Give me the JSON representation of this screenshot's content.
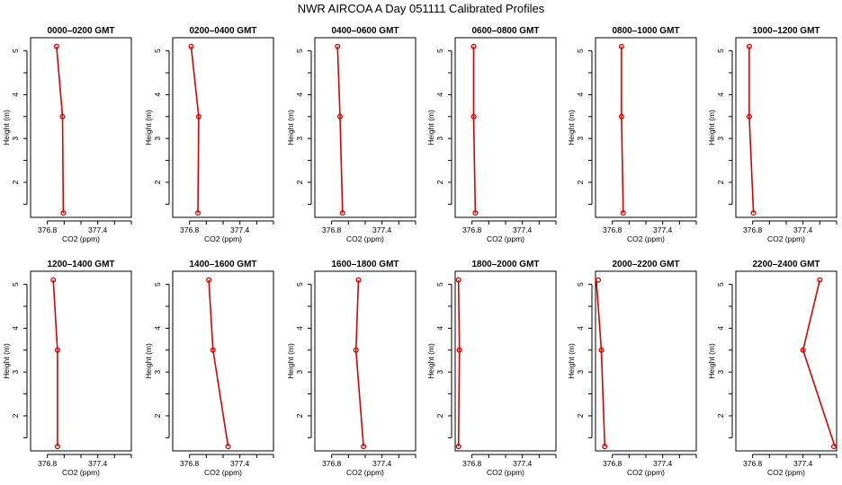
{
  "title": "NWR AIRCOA A  Day 051111  Calibrated Profiles",
  "colors": {
    "series": "#dd0000",
    "axes": "#000000",
    "background": "#ffffff"
  },
  "chart_data": [
    {
      "type": "line",
      "title": "0000–0200 GMT",
      "xlabel": "CO2 (ppm)",
      "ylabel": "Height (m)",
      "xlim": [
        376.6,
        377.8
      ],
      "ylim": [
        1.2,
        5.3
      ],
      "xticks": [
        "376.8",
        "377.4"
      ],
      "yticks": [
        "2",
        "3",
        "4",
        "5"
      ],
      "grid": false,
      "points": [
        {
          "x": 376.99,
          "y": 1.3
        },
        {
          "x": 376.98,
          "y": 3.5
        },
        {
          "x": 376.91,
          "y": 5.1
        }
      ]
    },
    {
      "type": "line",
      "title": "0200–0400 GMT",
      "xlabel": "CO2 (ppm)",
      "ylabel": "Height (m)",
      "xlim": [
        376.6,
        377.8
      ],
      "ylim": [
        1.2,
        5.3
      ],
      "xticks": [
        "376.8",
        "377.4"
      ],
      "yticks": [
        "2",
        "3",
        "4",
        "5"
      ],
      "grid": false,
      "points": [
        {
          "x": 376.9,
          "y": 1.3
        },
        {
          "x": 376.91,
          "y": 3.5
        },
        {
          "x": 376.82,
          "y": 5.1
        }
      ]
    },
    {
      "type": "line",
      "title": "0400–0600 GMT",
      "xlabel": "CO2 (ppm)",
      "ylabel": "Height (m)",
      "xlim": [
        376.6,
        377.8
      ],
      "ylim": [
        1.2,
        5.3
      ],
      "xticks": [
        "376.8",
        "377.4"
      ],
      "yticks": [
        "2",
        "3",
        "4",
        "5"
      ],
      "grid": false,
      "points": [
        {
          "x": 376.93,
          "y": 1.3
        },
        {
          "x": 376.9,
          "y": 3.5
        },
        {
          "x": 376.87,
          "y": 5.1
        }
      ]
    },
    {
      "type": "line",
      "title": "0600–0800 GMT",
      "xlabel": "CO2 (ppm)",
      "ylabel": "Height (m)",
      "xlim": [
        376.6,
        377.8
      ],
      "ylim": [
        1.2,
        5.3
      ],
      "xticks": [
        "376.8",
        "377.4"
      ],
      "yticks": [
        "2",
        "3",
        "4",
        "5"
      ],
      "grid": false,
      "points": [
        {
          "x": 376.84,
          "y": 1.3
        },
        {
          "x": 376.82,
          "y": 3.5
        },
        {
          "x": 376.82,
          "y": 5.1
        }
      ]
    },
    {
      "type": "line",
      "title": "0800–1000 GMT",
      "xlabel": "CO2 (ppm)",
      "ylabel": "Height (m)",
      "xlim": [
        376.6,
        377.8
      ],
      "ylim": [
        1.2,
        5.3
      ],
      "xticks": [
        "376.8",
        "377.4"
      ],
      "yticks": [
        "2",
        "3",
        "4",
        "5"
      ],
      "grid": false,
      "points": [
        {
          "x": 376.93,
          "y": 1.3
        },
        {
          "x": 376.91,
          "y": 3.5
        },
        {
          "x": 376.91,
          "y": 5.1
        }
      ]
    },
    {
      "type": "line",
      "title": "1000–1200 GMT",
      "xlabel": "CO2 (ppm)",
      "ylabel": "Height (m)",
      "xlim": [
        376.6,
        377.8
      ],
      "ylim": [
        1.2,
        5.3
      ],
      "xticks": [
        "376.8",
        "377.4"
      ],
      "yticks": [
        "2",
        "3",
        "4",
        "5"
      ],
      "grid": false,
      "points": [
        {
          "x": 376.81,
          "y": 1.3
        },
        {
          "x": 376.76,
          "y": 3.5
        },
        {
          "x": 376.76,
          "y": 5.1
        }
      ]
    },
    {
      "type": "line",
      "title": "1200–1400 GMT",
      "xlabel": "CO2 (ppm)",
      "ylabel": "Height (m)",
      "xlim": [
        376.6,
        377.8
      ],
      "ylim": [
        1.2,
        5.3
      ],
      "xticks": [
        "376.8",
        "377.4"
      ],
      "yticks": [
        "2",
        "3",
        "4",
        "5"
      ],
      "grid": false,
      "points": [
        {
          "x": 376.92,
          "y": 1.3
        },
        {
          "x": 376.92,
          "y": 3.5
        },
        {
          "x": 376.87,
          "y": 5.1
        }
      ]
    },
    {
      "type": "line",
      "title": "1400–1600 GMT",
      "xlabel": "CO2 (ppm)",
      "ylabel": "Height (m)",
      "xlim": [
        376.6,
        377.8
      ],
      "ylim": [
        1.2,
        5.3
      ],
      "xticks": [
        "376.8",
        "377.4"
      ],
      "yticks": [
        "2",
        "3",
        "4",
        "5"
      ],
      "grid": false,
      "points": [
        {
          "x": 377.26,
          "y": 1.3
        },
        {
          "x": 377.08,
          "y": 3.5
        },
        {
          "x": 377.03,
          "y": 5.1
        }
      ]
    },
    {
      "type": "line",
      "title": "1600–1800 GMT",
      "xlabel": "CO2 (ppm)",
      "ylabel": "Height (m)",
      "xlim": [
        376.6,
        377.8
      ],
      "ylim": [
        1.2,
        5.3
      ],
      "xticks": [
        "376.8",
        "377.4"
      ],
      "yticks": [
        "2",
        "3",
        "4",
        "5"
      ],
      "grid": false,
      "points": [
        {
          "x": 377.18,
          "y": 1.3
        },
        {
          "x": 377.09,
          "y": 3.5
        },
        {
          "x": 377.12,
          "y": 5.1
        }
      ]
    },
    {
      "type": "line",
      "title": "1800–2000 GMT",
      "xlabel": "CO2 (ppm)",
      "ylabel": "Height (m)",
      "xlim": [
        376.6,
        377.8
      ],
      "ylim": [
        1.2,
        5.3
      ],
      "xticks": [
        "376.8",
        "377.4"
      ],
      "yticks": [
        "2",
        "3",
        "4",
        "5"
      ],
      "grid": false,
      "points": [
        {
          "x": 376.64,
          "y": 1.3
        },
        {
          "x": 376.65,
          "y": 3.5
        },
        {
          "x": 376.64,
          "y": 5.1
        }
      ]
    },
    {
      "type": "line",
      "title": "2000–2200 GMT",
      "xlabel": "CO2 (ppm)",
      "ylabel": "Height (m)",
      "xlim": [
        376.6,
        377.8
      ],
      "ylim": [
        1.2,
        5.3
      ],
      "xticks": [
        "376.8",
        "377.4"
      ],
      "yticks": [
        "2",
        "3",
        "4",
        "5"
      ],
      "grid": false,
      "points": [
        {
          "x": 376.71,
          "y": 1.3
        },
        {
          "x": 376.67,
          "y": 3.5
        },
        {
          "x": 376.61,
          "y": 5.1
        }
      ]
    },
    {
      "type": "line",
      "title": "2200–2400 GMT",
      "xlabel": "CO2 (ppm)",
      "ylabel": "Height (m)",
      "xlim": [
        376.6,
        377.8
      ],
      "ylim": [
        1.2,
        5.3
      ],
      "xticks": [
        "376.8",
        "377.4"
      ],
      "yticks": [
        "2",
        "3",
        "4",
        "5"
      ],
      "grid": false,
      "points": [
        {
          "x": 377.78,
          "y": 1.3
        },
        {
          "x": 377.4,
          "y": 3.5
        },
        {
          "x": 377.6,
          "y": 5.1
        }
      ]
    }
  ]
}
